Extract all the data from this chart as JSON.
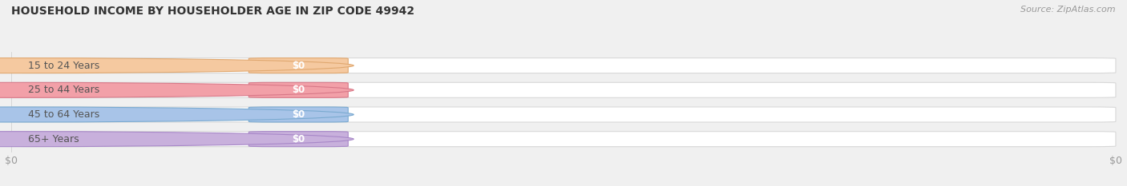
{
  "title": "HOUSEHOLD INCOME BY HOUSEHOLDER AGE IN ZIP CODE 49942",
  "source": "Source: ZipAtlas.com",
  "categories": [
    "15 to 24 Years",
    "25 to 44 Years",
    "45 to 64 Years",
    "65+ Years"
  ],
  "values": [
    0,
    0,
    0,
    0
  ],
  "bar_colors": [
    "#f5c9a0",
    "#f2a0a8",
    "#a8c4e8",
    "#c8b0dc"
  ],
  "bar_edge_colors": [
    "#e0a870",
    "#d87888",
    "#7aaad0",
    "#a888c8"
  ],
  "background_color": "#f0f0f0",
  "bar_bg_color": "#ffffff",
  "bar_bg_edge_color": "#d8d8d8",
  "xlim_max": 1.0,
  "bar_height": 0.62,
  "title_fontsize": 10,
  "source_fontsize": 8,
  "label_fontsize": 9,
  "tick_fontsize": 9,
  "label_color": "#555555",
  "value_label_color": "#ffffff",
  "tick_color": "#999999"
}
